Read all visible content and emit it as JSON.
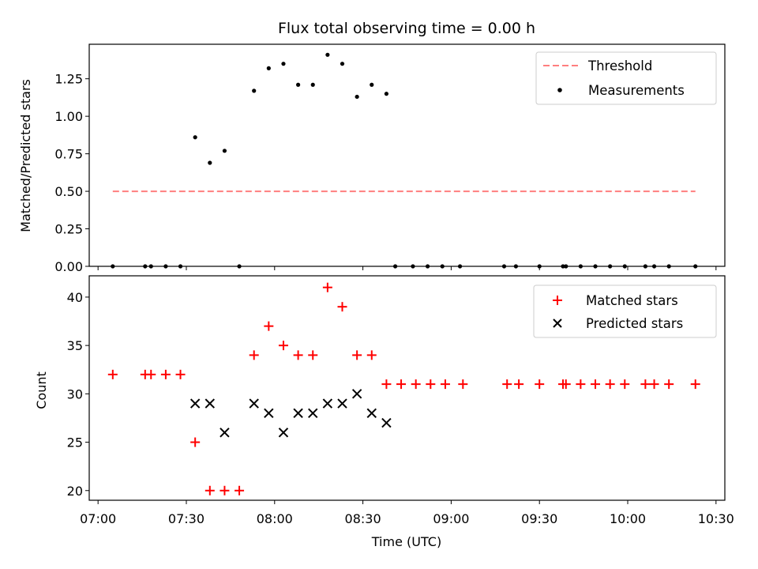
{
  "chart_data": [
    {
      "type": "scatter",
      "title": "Flux total observing time = 0.00 h",
      "xlabel": "",
      "ylabel": "Matched/Predicted stars",
      "xlim": [
        "06:57",
        "10:33"
      ],
      "ylim": [
        0,
        1.48
      ],
      "yticks": [
        0,
        0.25,
        0.5,
        0.75,
        1.0,
        1.25
      ],
      "ytick_labels": [
        "0.00",
        "0.25",
        "0.50",
        "0.75",
        "1.00",
        "1.25"
      ],
      "xticks": [
        "07:00",
        "07:30",
        "08:00",
        "08:30",
        "09:00",
        "09:30",
        "10:00",
        "10:30"
      ],
      "grid": false,
      "legend_position": "top-right",
      "series": [
        {
          "name": "Threshold",
          "kind": "line",
          "style": "dashed",
          "color": "#ff7f7f",
          "x": [
            "07:05",
            "10:23"
          ],
          "y": [
            0.5,
            0.5
          ]
        },
        {
          "name": "Measurements",
          "kind": "scatter",
          "marker": "dot",
          "color": "#000000",
          "x": [
            "07:05",
            "07:16",
            "07:18",
            "07:23",
            "07:28",
            "07:33",
            "07:38",
            "07:43",
            "07:48",
            "07:53",
            "07:58",
            "08:03",
            "08:08",
            "08:13",
            "08:18",
            "08:23",
            "08:28",
            "08:33",
            "08:38",
            "08:41",
            "08:47",
            "08:52",
            "08:57",
            "09:03",
            "09:18",
            "09:22",
            "09:30",
            "09:38",
            "09:39",
            "09:44",
            "09:49",
            "09:54",
            "09:59",
            "10:06",
            "10:09",
            "10:14",
            "10:23"
          ],
          "y": [
            0,
            0,
            0,
            0,
            0,
            0.86,
            0.69,
            0.77,
            0,
            1.17,
            1.32,
            1.35,
            1.21,
            1.21,
            1.41,
            1.35,
            1.13,
            1.21,
            1.15,
            0,
            0,
            0,
            0,
            0,
            0,
            0,
            0,
            0,
            0,
            0,
            0,
            0,
            0,
            0,
            0,
            0,
            0
          ]
        }
      ]
    },
    {
      "type": "scatter",
      "title": "",
      "xlabel": "Time (UTC)",
      "ylabel": "Count",
      "xlim": [
        "06:57",
        "10:33"
      ],
      "ylim": [
        19,
        42.2
      ],
      "yticks": [
        20,
        25,
        30,
        35,
        40
      ],
      "ytick_labels": [
        "20",
        "25",
        "30",
        "35",
        "40"
      ],
      "xticks": [
        "07:00",
        "07:30",
        "08:00",
        "08:30",
        "09:00",
        "09:30",
        "10:00",
        "10:30"
      ],
      "xtick_labels": [
        "07:00",
        "07:30",
        "08:00",
        "08:30",
        "09:00",
        "09:30",
        "10:00",
        "10:30"
      ],
      "grid": false,
      "legend_position": "top-right",
      "series": [
        {
          "name": "Matched stars",
          "kind": "scatter",
          "marker": "plus",
          "color": "#ff0000",
          "x": [
            "07:05",
            "07:16",
            "07:18",
            "07:23",
            "07:28",
            "07:33",
            "07:38",
            "07:43",
            "07:48",
            "07:53",
            "07:58",
            "08:03",
            "08:08",
            "08:13",
            "08:18",
            "08:23",
            "08:28",
            "08:33",
            "08:38",
            "08:43",
            "08:48",
            "08:53",
            "08:58",
            "09:04",
            "09:19",
            "09:23",
            "09:30",
            "09:38",
            "09:39",
            "09:44",
            "09:49",
            "09:54",
            "09:59",
            "10:06",
            "10:09",
            "10:14",
            "10:23"
          ],
          "y": [
            32,
            32,
            32,
            32,
            32,
            25,
            20,
            20,
            20,
            34,
            37,
            35,
            34,
            34,
            41,
            39,
            34,
            34,
            31,
            31,
            31,
            31,
            31,
            31,
            31,
            31,
            31,
            31,
            31,
            31,
            31,
            31,
            31,
            31,
            31,
            31,
            31
          ]
        },
        {
          "name": "Predicted stars",
          "kind": "scatter",
          "marker": "x",
          "color": "#000000",
          "x": [
            "07:33",
            "07:38",
            "07:43",
            "07:53",
            "07:58",
            "08:03",
            "08:08",
            "08:13",
            "08:18",
            "08:23",
            "08:28",
            "08:33",
            "08:38"
          ],
          "y": [
            29,
            29,
            26,
            29,
            28,
            26,
            28,
            28,
            29,
            29,
            30,
            28,
            27
          ]
        }
      ]
    }
  ]
}
